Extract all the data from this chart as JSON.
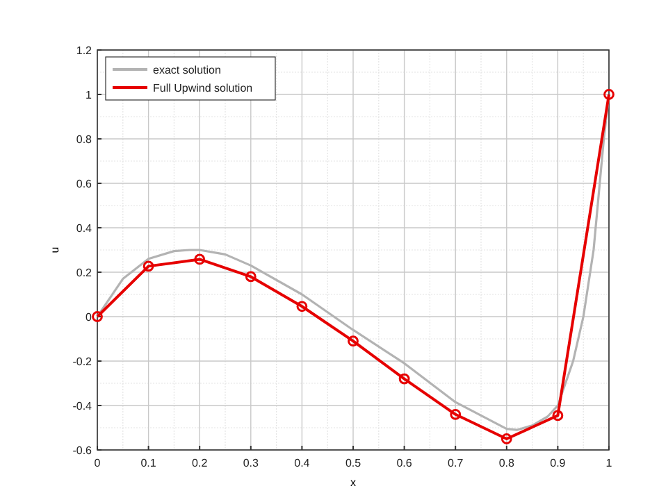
{
  "chart_data": {
    "type": "line",
    "xlabel": "x",
    "ylabel": "u",
    "xlim": [
      0,
      1
    ],
    "ylim": [
      -0.6,
      1.2
    ],
    "xticks": [
      0,
      0.1,
      0.2,
      0.3,
      0.4,
      0.5,
      0.6,
      0.7,
      0.8,
      0.9,
      1
    ],
    "yticks": [
      -0.6,
      -0.4,
      -0.2,
      0,
      0.2,
      0.4,
      0.6,
      0.8,
      1,
      1.2
    ],
    "grid": true,
    "legend": "top left",
    "line_style": "solid",
    "series": [
      {
        "name": "exact solution",
        "color": "#b3b3b3",
        "marker": "none",
        "x": [
          0,
          0.05,
          0.1,
          0.15,
          0.18,
          0.2,
          0.25,
          0.3,
          0.4,
          0.5,
          0.6,
          0.7,
          0.8,
          0.82,
          0.85,
          0.88,
          0.9,
          0.93,
          0.95,
          0.97,
          0.99,
          1
        ],
        "values": [
          0,
          0.17,
          0.26,
          0.295,
          0.3,
          0.3,
          0.28,
          0.23,
          0.1,
          -0.06,
          -0.21,
          -0.385,
          -0.505,
          -0.51,
          -0.49,
          -0.45,
          -0.4,
          -0.2,
          0,
          0.3,
          0.8,
          1
        ]
      },
      {
        "name": "Full Upwind solution",
        "color": "#e60000",
        "marker": "circle",
        "x": [
          0,
          0.1,
          0.2,
          0.3,
          0.4,
          0.5,
          0.6,
          0.7,
          0.8,
          0.9,
          1
        ],
        "values": [
          0,
          0.227,
          0.258,
          0.18,
          0.046,
          -0.11,
          -0.28,
          -0.44,
          -0.55,
          -0.445,
          1
        ]
      }
    ]
  }
}
